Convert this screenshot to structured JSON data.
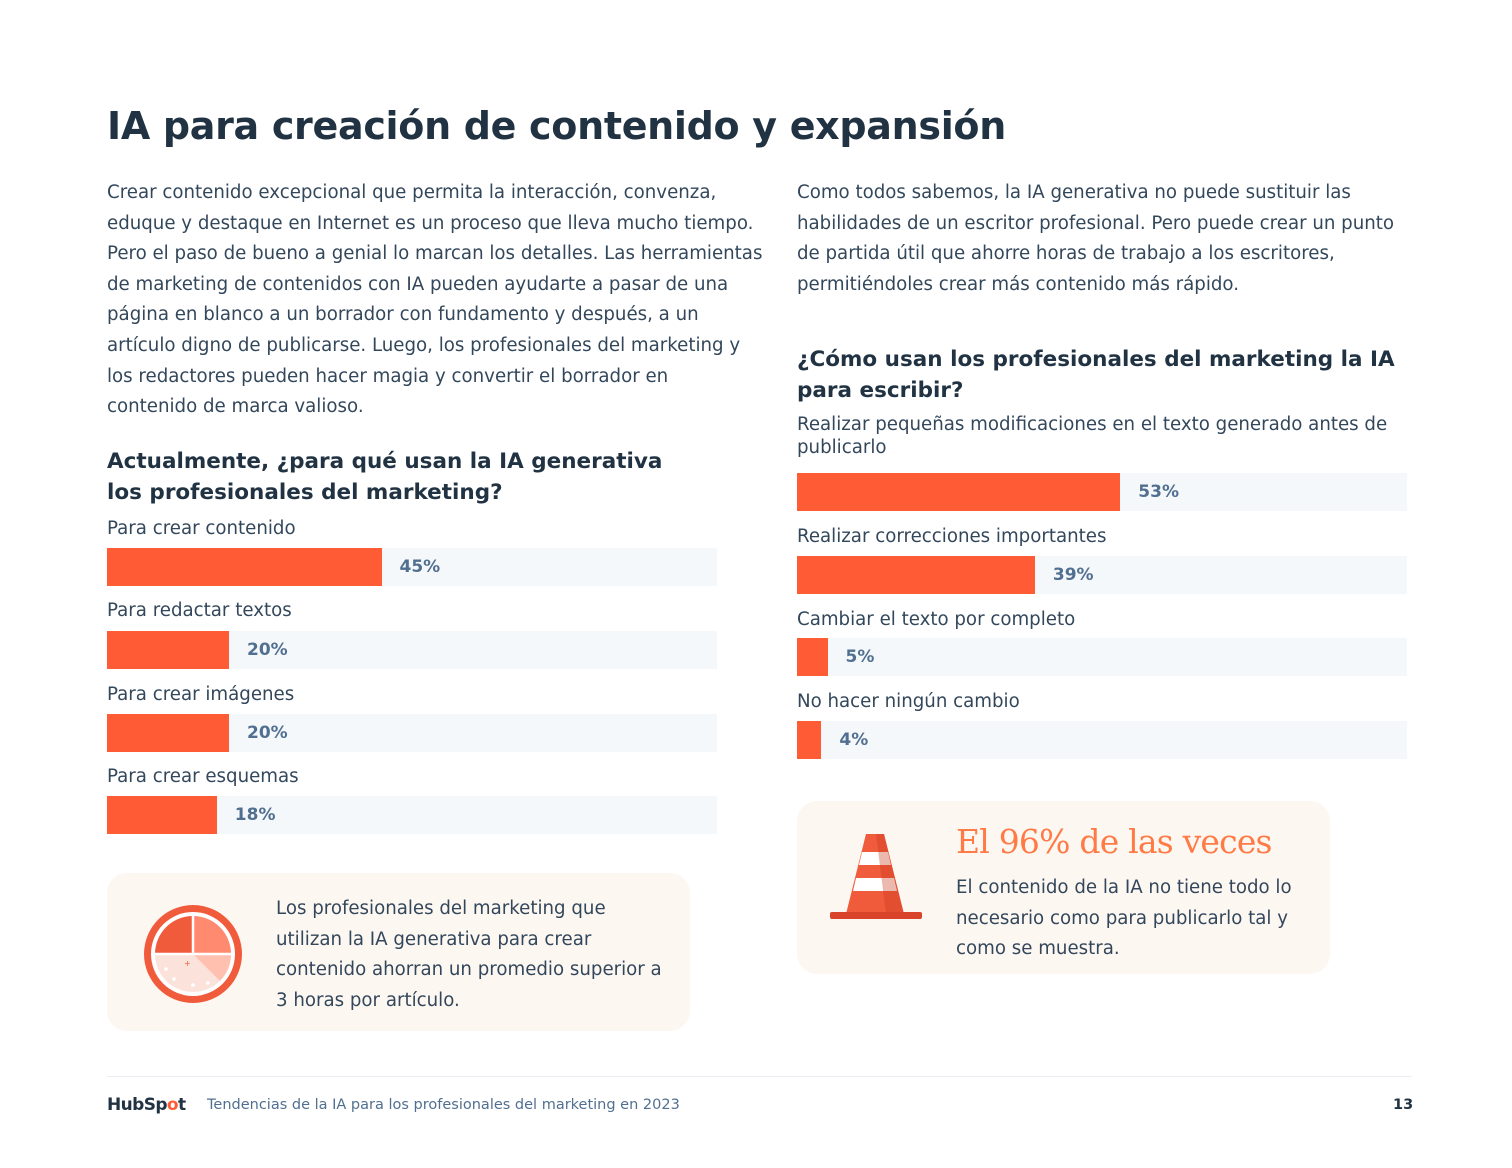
{
  "page": {
    "title": "IA para creación de contenido y expansión",
    "intro_left": "Crear contenido excepcional que permita la interacción, convenza, eduque y destaque en Internet es un proceso que lleva mucho tiempo. Pero el paso de bueno a genial lo marcan los detalles. Las herramientas de marketing de contenidos con IA pueden ayudarte a pasar de una página en blanco a un borrador con fundamento y después, a un artículo digno de publicarse. Luego, los profesionales del marketing y los redactores pueden hacer magia y convertir el borrador en contenido de marca valioso.",
    "intro_right": "Como todos sabemos, la IA generativa no puede sustituir las habilidades de un escritor profesional. Pero puede crear un punto de partida útil que ahorre horas de trabajo a los escritores, permitiéndoles crear más contenido más rápido."
  },
  "callout_left": {
    "icon": "clock-icon",
    "text": "Los profesionales del marketing que utilizan la IA generativa para crear contenido ahorran un promedio superior a 3 horas por artículo."
  },
  "callout_right": {
    "icon": "traffic-cone-icon",
    "heading": "El 96% de las veces",
    "body": "El contenido de la IA no tiene todo lo necesario como para publicarlo tal y como se muestra."
  },
  "footer": {
    "logo_prefix": "HubSp",
    "logo_o": "o",
    "logo_suffix": "t",
    "text": "Tendencias de la IA para los profesionales del marketing en 2023",
    "page_number": "13"
  },
  "colors": {
    "bar_fill": "#ff5c35",
    "bar_track": "#f5f8fa",
    "accent_orange": "#ff7a45",
    "heading": "#213343"
  },
  "chart_data": [
    {
      "type": "bar",
      "orientation": "horizontal",
      "title": "Actualmente, ¿para qué usan la IA generativa los profesionales del marketing?",
      "categories": [
        "Para crear contenido",
        "Para redactar textos",
        "Para crear imágenes",
        "Para crear esquemas"
      ],
      "values": [
        45,
        20,
        20,
        18
      ],
      "value_labels": [
        "45%",
        "20%",
        "20%",
        "18%"
      ],
      "xlim": [
        0,
        100
      ],
      "unit": "%"
    },
    {
      "type": "bar",
      "orientation": "horizontal",
      "title": "¿Cómo usan los profesionales del marketing la IA para escribir?",
      "categories": [
        "Realizar pequeñas modificaciones en el texto generado antes de publicarlo",
        "Realizar correcciones importantes",
        "Cambiar el texto por completo",
        "No hacer ningún cambio"
      ],
      "values": [
        53,
        39,
        5,
        4
      ],
      "value_labels": [
        "53%",
        "39%",
        "5%",
        "4%"
      ],
      "xlim": [
        0,
        100
      ],
      "unit": "%"
    }
  ]
}
